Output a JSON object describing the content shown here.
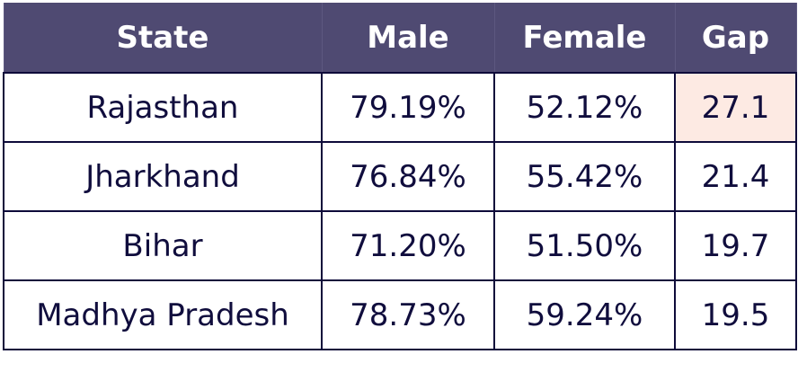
{
  "table": {
    "header": [
      "State",
      "Male",
      "Female",
      "Gap"
    ],
    "rows": [
      [
        "Rajasthan",
        "79.19%",
        "52.12%",
        "27.1"
      ],
      [
        "Jharkhand",
        "76.84%",
        "55.42%",
        "21.4"
      ],
      [
        "Bihar",
        "71.20%",
        "51.50%",
        "19.7"
      ],
      [
        "Madhya Pradesh",
        "78.73%",
        "59.24%",
        "19.5"
      ]
    ]
  }
}
